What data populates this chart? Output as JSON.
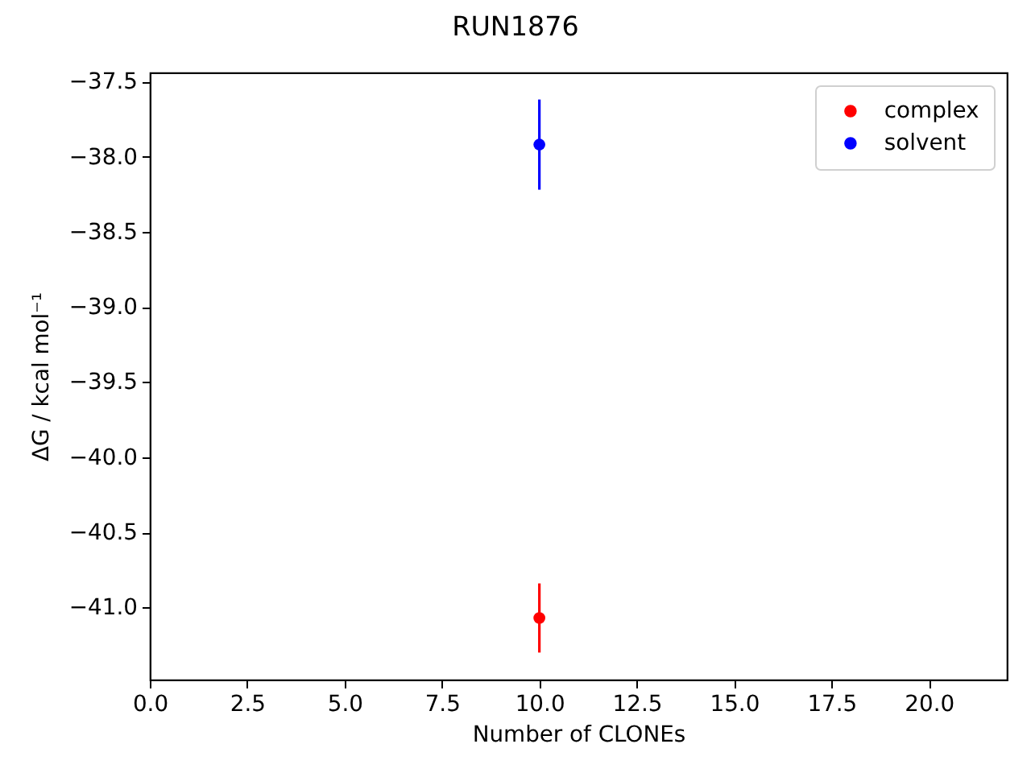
{
  "chart_data": {
    "type": "scatter",
    "title": "RUN1876",
    "xlabel": "Number of CLONEs",
    "ylabel": "ΔG / kcal mol⁻¹",
    "x": [
      10
    ],
    "series": [
      {
        "name": "complex",
        "color": "#ff0000",
        "values": [
          -41.07
        ],
        "errors": [
          0.23
        ]
      },
      {
        "name": "solvent",
        "color": "#0000ff",
        "values": [
          -37.92
        ],
        "errors": [
          0.3
        ]
      }
    ],
    "xlim": [
      0,
      22
    ],
    "ylim": [
      -41.48,
      -37.44
    ],
    "xticks": [
      {
        "value": 0,
        "label": "0.0"
      },
      {
        "value": 2.5,
        "label": "2.5"
      },
      {
        "value": 5,
        "label": "5.0"
      },
      {
        "value": 7.5,
        "label": "7.5"
      },
      {
        "value": 10,
        "label": "10.0"
      },
      {
        "value": 12.5,
        "label": "12.5"
      },
      {
        "value": 15,
        "label": "15.0"
      },
      {
        "value": 17.5,
        "label": "17.5"
      },
      {
        "value": 20,
        "label": "20.0"
      }
    ],
    "yticks": [
      {
        "value": -41,
        "label": "−41.0"
      },
      {
        "value": -40.5,
        "label": "−40.5"
      },
      {
        "value": -40,
        "label": "−40.0"
      },
      {
        "value": -39.5,
        "label": "−39.5"
      },
      {
        "value": -39,
        "label": "−39.0"
      },
      {
        "value": -38.5,
        "label": "−38.5"
      },
      {
        "value": -38,
        "label": "−38.0"
      },
      {
        "value": -37.5,
        "label": "−37.5"
      }
    ],
    "grid": false,
    "legend": "top right",
    "marker": "circle"
  }
}
